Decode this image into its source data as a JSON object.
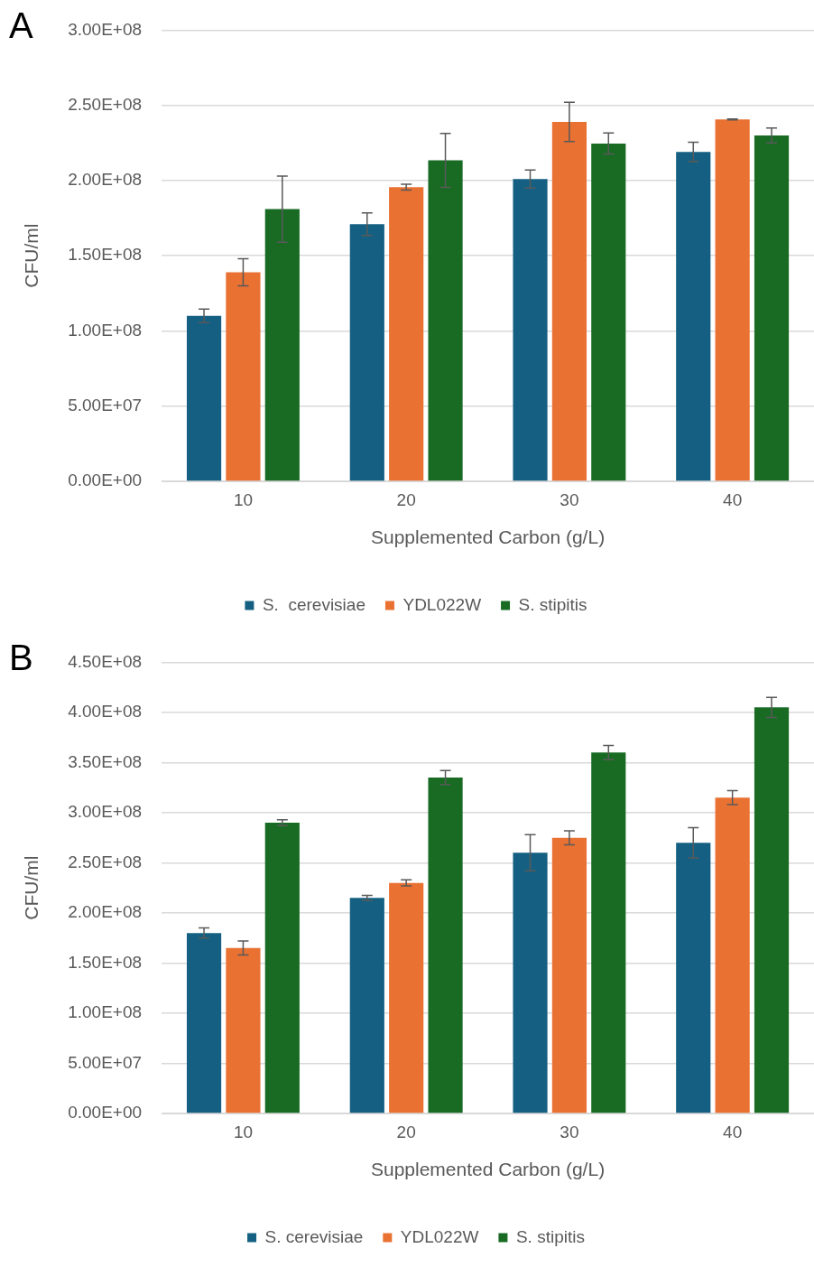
{
  "chart_data": [
    {
      "type": "bar",
      "title": "A",
      "xlabel": "Supplemented Carbon (g/L)",
      "ylabel": "CFU/ml",
      "categories": [
        "10",
        "20",
        "30",
        "40"
      ],
      "series": [
        {
          "name": "S.  cerevisiae",
          "color": "#156082",
          "values": [
            110000000,
            171000000,
            201000000,
            219000000
          ],
          "errors": [
            4500000,
            7500000,
            6000000,
            6500000
          ]
        },
        {
          "name": "YDL022W",
          "color": "#e97132",
          "values": [
            139000000,
            195600000,
            239000000,
            240700000
          ],
          "errors": [
            9000000,
            2000000,
            13000000,
            300000
          ]
        },
        {
          "name": "S. stipitis",
          "color": "#196b24",
          "values": [
            181000000,
            213400000,
            224600000,
            230000000
          ],
          "errors": [
            22000000,
            18000000,
            7000000,
            5000000
          ]
        }
      ],
      "ylim": [
        0,
        300000000
      ],
      "yticks": [
        {
          "value": 0,
          "label": "0.00E+00"
        },
        {
          "value": 50000000,
          "label": "5.00E+07"
        },
        {
          "value": 100000000,
          "label": "1.00E+08"
        },
        {
          "value": 150000000,
          "label": "1.50E+08"
        },
        {
          "value": 200000000,
          "label": "2.00E+08"
        },
        {
          "value": 250000000,
          "label": "2.50E+08"
        },
        {
          "value": 300000000,
          "label": "3.00E+08"
        }
      ],
      "grid": "y",
      "legend": "bottom"
    },
    {
      "type": "bar",
      "title": "B",
      "xlabel": "Supplemented Carbon (g/L)",
      "ylabel": "CFU/ml",
      "categories": [
        "10",
        "20",
        "30",
        "40"
      ],
      "series": [
        {
          "name": "S. cerevisiae",
          "color": "#156082",
          "values": [
            180000000,
            215000000,
            260000000,
            270000000
          ],
          "errors": [
            5000000,
            2500000,
            18000000,
            15000000
          ]
        },
        {
          "name": "YDL022W",
          "color": "#e97132",
          "values": [
            165000000,
            230000000,
            275000000,
            315000000
          ],
          "errors": [
            7000000,
            3000000,
            7000000,
            7000000
          ]
        },
        {
          "name": "S. stipitis",
          "color": "#196b24",
          "values": [
            290000000,
            335000000,
            360000000,
            405000000
          ],
          "errors": [
            3000000,
            7000000,
            7000000,
            10000000
          ]
        }
      ],
      "ylim": [
        0,
        450000000
      ],
      "yticks": [
        {
          "value": 0,
          "label": "0.00E+00"
        },
        {
          "value": 50000000,
          "label": "5.00E+07"
        },
        {
          "value": 100000000,
          "label": "1.00E+08"
        },
        {
          "value": 150000000,
          "label": "1.50E+08"
        },
        {
          "value": 200000000,
          "label": "2.00E+08"
        },
        {
          "value": 250000000,
          "label": "2.50E+08"
        },
        {
          "value": 300000000,
          "label": "3.00E+08"
        },
        {
          "value": 350000000,
          "label": "3.50E+08"
        },
        {
          "value": 400000000,
          "label": "4.00E+08"
        },
        {
          "value": 450000000,
          "label": "4.50E+08"
        }
      ],
      "grid": "y",
      "legend": "bottom"
    }
  ]
}
